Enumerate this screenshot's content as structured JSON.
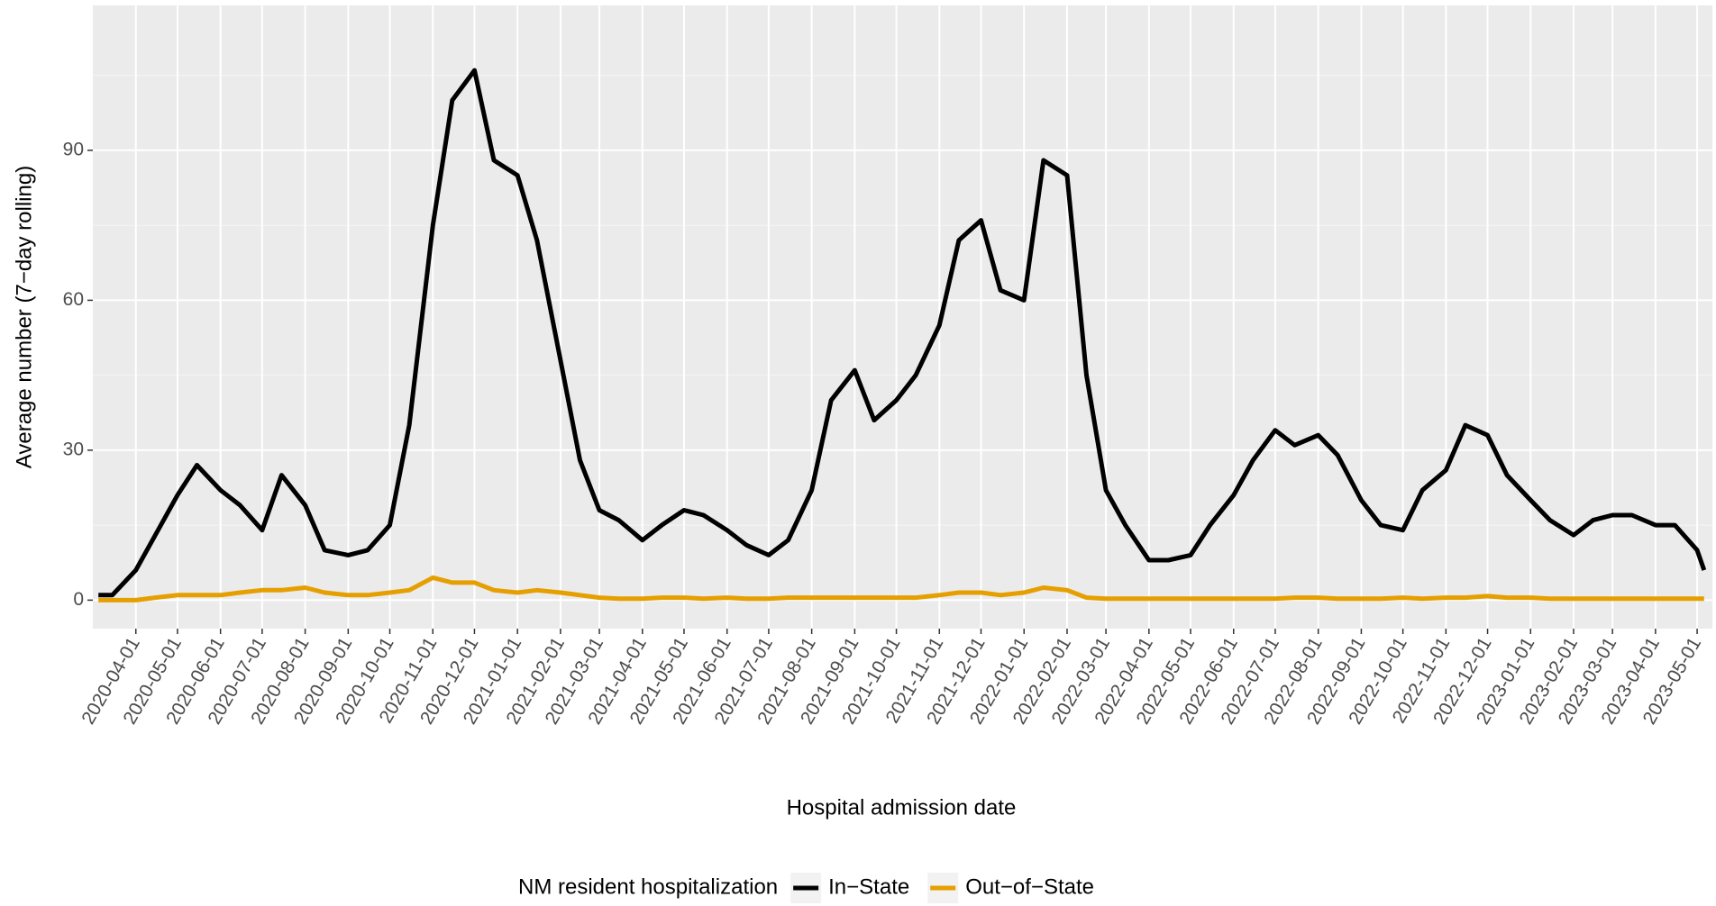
{
  "chart_data": {
    "type": "line",
    "x_label": "Hospital admission date",
    "y_label": "Average number (7−day rolling)",
    "legend_title": "NM resident hospitalization",
    "legend_position": "bottom",
    "grid": true,
    "x": [
      "2020-03-05",
      "2020-03-15",
      "2020-04-01",
      "2020-04-15",
      "2020-05-01",
      "2020-05-15",
      "2020-06-01",
      "2020-06-15",
      "2020-07-01",
      "2020-07-15",
      "2020-08-01",
      "2020-08-15",
      "2020-09-01",
      "2020-09-15",
      "2020-10-01",
      "2020-10-15",
      "2020-11-01",
      "2020-11-15",
      "2020-12-01",
      "2020-12-15",
      "2021-01-01",
      "2021-01-15",
      "2021-02-01",
      "2021-02-15",
      "2021-03-01",
      "2021-03-15",
      "2021-04-01",
      "2021-04-15",
      "2021-05-01",
      "2021-05-15",
      "2021-06-01",
      "2021-06-15",
      "2021-07-01",
      "2021-07-15",
      "2021-08-01",
      "2021-08-15",
      "2021-09-01",
      "2021-09-15",
      "2021-10-01",
      "2021-10-15",
      "2021-11-01",
      "2021-11-15",
      "2021-12-01",
      "2021-12-15",
      "2022-01-01",
      "2022-01-15",
      "2022-02-01",
      "2022-02-15",
      "2022-03-01",
      "2022-03-15",
      "2022-04-01",
      "2022-04-15",
      "2022-05-01",
      "2022-05-15",
      "2022-06-01",
      "2022-06-15",
      "2022-07-01",
      "2022-07-15",
      "2022-08-01",
      "2022-08-15",
      "2022-09-01",
      "2022-09-15",
      "2022-10-01",
      "2022-10-15",
      "2022-11-01",
      "2022-11-15",
      "2022-12-01",
      "2022-12-15",
      "2023-01-01",
      "2023-01-15",
      "2023-02-01",
      "2023-02-15",
      "2023-03-01",
      "2023-03-15",
      "2023-04-01",
      "2023-04-15",
      "2023-05-01",
      "2023-05-06"
    ],
    "series": [
      {
        "name": "In−State",
        "color": "#000000",
        "values": [
          1,
          1,
          6,
          13,
          21,
          27,
          22,
          19,
          14,
          25,
          19,
          10,
          9,
          10,
          15,
          35,
          75,
          100,
          106,
          88,
          85,
          72,
          48,
          28,
          18,
          16,
          12,
          15,
          18,
          17,
          14,
          11,
          9,
          12,
          22,
          40,
          46,
          36,
          40,
          45,
          55,
          72,
          76,
          62,
          60,
          88,
          85,
          45,
          22,
          15,
          8,
          8,
          9,
          15,
          21,
          28,
          34,
          31,
          33,
          29,
          20,
          15,
          14,
          22,
          26,
          35,
          33,
          25,
          20,
          16,
          13,
          16,
          17,
          17,
          15,
          15,
          10,
          6
        ]
      },
      {
        "name": "Out−of−State",
        "color": "#e69f00",
        "values": [
          0,
          0,
          0,
          0.5,
          1,
          1,
          1,
          1.5,
          2,
          2,
          2.5,
          1.5,
          1,
          1,
          1.5,
          2,
          4.5,
          3.5,
          3.5,
          2,
          1.5,
          2,
          1.5,
          1,
          0.5,
          0.3,
          0.3,
          0.5,
          0.5,
          0.3,
          0.5,
          0.3,
          0.3,
          0.5,
          0.5,
          0.5,
          0.5,
          0.5,
          0.5,
          0.5,
          1,
          1.5,
          1.5,
          1,
          1.5,
          2.5,
          2,
          0.5,
          0.3,
          0.3,
          0.3,
          0.3,
          0.3,
          0.3,
          0.3,
          0.3,
          0.3,
          0.5,
          0.5,
          0.3,
          0.3,
          0.3,
          0.5,
          0.3,
          0.5,
          0.5,
          0.8,
          0.5,
          0.5,
          0.3,
          0.3,
          0.3,
          0.3,
          0.3,
          0.3,
          0.3,
          0.3,
          0.3
        ]
      }
    ],
    "xlim": [
      "2020-03-01",
      "2023-05-12"
    ],
    "xticks": [
      "2020-04-01",
      "2020-05-01",
      "2020-06-01",
      "2020-07-01",
      "2020-08-01",
      "2020-09-01",
      "2020-10-01",
      "2020-11-01",
      "2020-12-01",
      "2021-01-01",
      "2021-02-01",
      "2021-03-01",
      "2021-04-01",
      "2021-05-01",
      "2021-06-01",
      "2021-07-01",
      "2021-08-01",
      "2021-09-01",
      "2021-10-01",
      "2021-11-01",
      "2021-12-01",
      "2022-01-01",
      "2022-02-01",
      "2022-03-01",
      "2022-04-01",
      "2022-05-01",
      "2022-06-01",
      "2022-07-01",
      "2022-08-01",
      "2022-09-01",
      "2022-10-01",
      "2022-11-01",
      "2022-12-01",
      "2023-01-01",
      "2023-02-01",
      "2023-03-01",
      "2023-04-01",
      "2023-05-01"
    ],
    "ylim": [
      -5.7,
      119
    ],
    "yticks": [
      0,
      30,
      60,
      90
    ],
    "minor_yticks": [
      15,
      45,
      75,
      105
    ]
  }
}
